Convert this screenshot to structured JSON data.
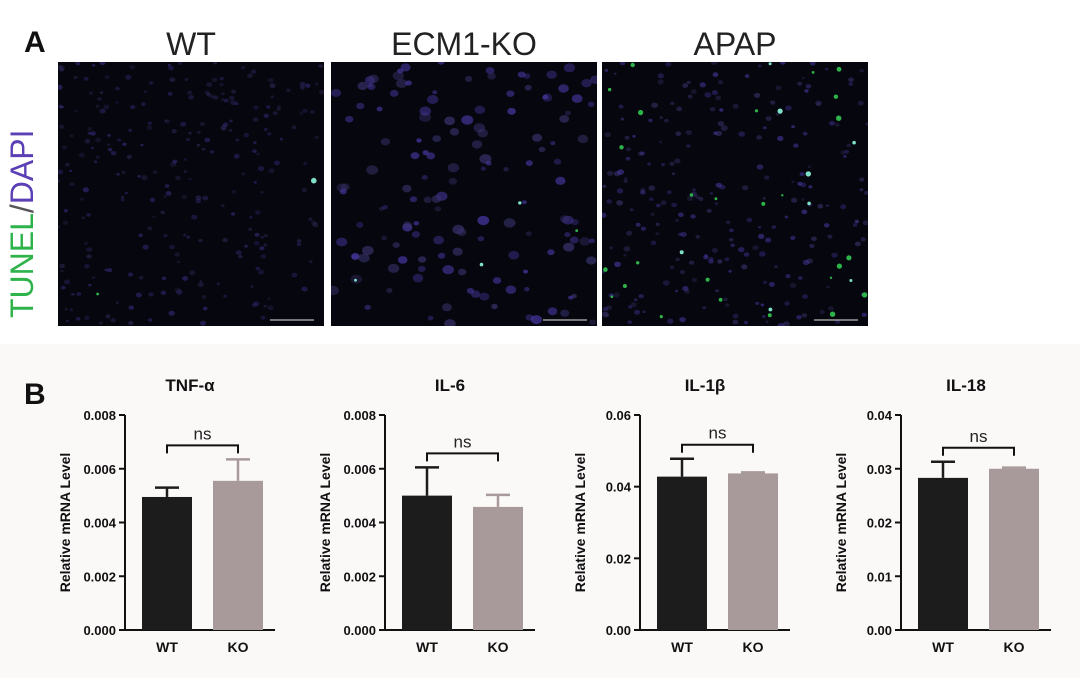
{
  "panel_a": {
    "letter": "A",
    "y_label_green": "TUNEL",
    "y_label_sep": "/",
    "y_label_blue": "DAPI",
    "micrographs": [
      {
        "title": "WT",
        "tunel_density": "low"
      },
      {
        "title": "ECM1-KO",
        "tunel_density": "low"
      },
      {
        "title": "APAP",
        "tunel_density": "high"
      }
    ],
    "colors": {
      "tunel": "#2db34a",
      "dapi": "#5b3fb5"
    }
  },
  "panel_b": {
    "letter": "B"
  },
  "chart_data": [
    {
      "type": "bar",
      "title": "TNF-α",
      "ylabel": "Relative mRNA Level",
      "categories": [
        "WT",
        "KO"
      ],
      "values": [
        0.00495,
        0.00555
      ],
      "errors": [
        0.00035,
        0.0008
      ],
      "ylim": [
        0,
        0.008
      ],
      "yticks": [
        "0.000",
        "0.002",
        "0.004",
        "0.006",
        "0.008"
      ],
      "significance": "ns",
      "colors": [
        "#1c1c1c",
        "#a89a9a"
      ]
    },
    {
      "type": "bar",
      "title": "IL-6",
      "ylabel": "Relative mRNA Level",
      "categories": [
        "WT",
        "KO"
      ],
      "values": [
        0.005,
        0.00458
      ],
      "errors": [
        0.00105,
        0.00045
      ],
      "ylim": [
        0,
        0.008
      ],
      "yticks": [
        "0.000",
        "0.002",
        "0.004",
        "0.006",
        "0.008"
      ],
      "significance": "ns",
      "colors": [
        "#1c1c1c",
        "#a89a9a"
      ]
    },
    {
      "type": "bar",
      "title": "IL-1β",
      "ylabel": "Relative mRNA Level",
      "categories": [
        "WT",
        "KO"
      ],
      "values": [
        0.0428,
        0.0437
      ],
      "errors": [
        0.005,
        0.0003
      ],
      "ylim": [
        0,
        0.06
      ],
      "yticks": [
        "0.00",
        "0.02",
        "0.04",
        "0.06"
      ],
      "significance": "ns",
      "colors": [
        "#1c1c1c",
        "#a89a9a"
      ]
    },
    {
      "type": "bar",
      "title": "IL-18",
      "ylabel": "Relative mRNA Level",
      "categories": [
        "WT",
        "KO"
      ],
      "values": [
        0.0283,
        0.03
      ],
      "errors": [
        0.003,
        0.0002
      ],
      "ylim": [
        0,
        0.04
      ],
      "yticks": [
        "0.00",
        "0.01",
        "0.02",
        "0.03",
        "0.04"
      ],
      "significance": "ns",
      "colors": [
        "#1c1c1c",
        "#a89a9a"
      ]
    }
  ]
}
